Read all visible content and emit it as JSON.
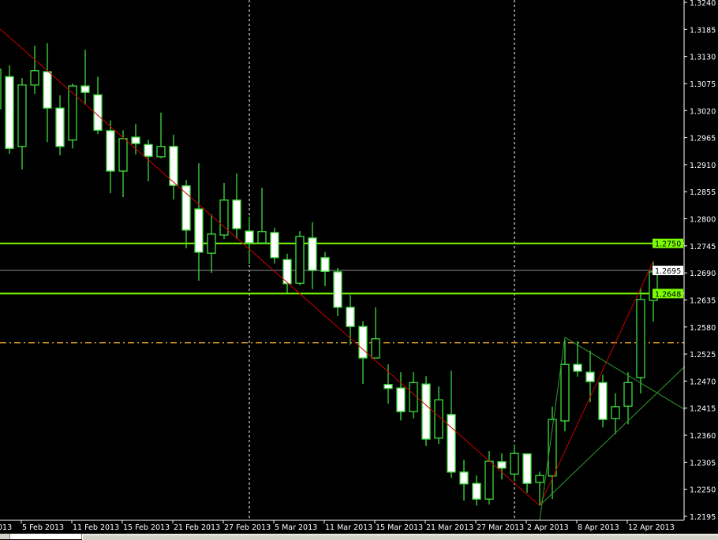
{
  "chart_data": {
    "type": "candlestick",
    "title": "",
    "ylim": [
      1.2195,
      1.324
    ],
    "y_ticks": [
      "1.3240",
      "1.3185",
      "1.3130",
      "1.3075",
      "1.3020",
      "1.2965",
      "1.2910",
      "1.2855",
      "1.2800",
      "1.2745",
      "1.2690",
      "1.2635",
      "1.2580",
      "1.2525",
      "1.2470",
      "1.2415",
      "1.2360",
      "1.2305",
      "1.2250",
      "1.2195"
    ],
    "x_ticks": [
      "013",
      "5 Feb 2013",
      "11 Feb 2013",
      "15 Feb 2013",
      "21 Feb 2013",
      "27 Feb 2013",
      "5 Mar 2013",
      "11 Mar 2013",
      "15 Mar 2013",
      "21 Mar 2013",
      "27 Mar 2013",
      "2 Apr 2013",
      "8 Apr 2013",
      "12 Apr 2013"
    ],
    "candles": [
      [
        1.3024,
        1.3109,
        1.294,
        1.3104
      ],
      [
        1.3089,
        1.3112,
        1.2932,
        1.2943
      ],
      [
        1.2947,
        1.3086,
        1.29,
        1.3072
      ],
      [
        1.3072,
        1.3152,
        1.3054,
        1.3101
      ],
      [
        1.3099,
        1.3157,
        1.2956,
        1.3025
      ],
      [
        1.3025,
        1.3051,
        1.2929,
        1.2947
      ],
      [
        1.296,
        1.3075,
        1.2943,
        1.307
      ],
      [
        1.307,
        1.3144,
        1.3032,
        1.3057
      ],
      [
        1.3052,
        1.3089,
        1.2972,
        1.298
      ],
      [
        1.2979,
        1.3,
        1.2852,
        1.2897
      ],
      [
        1.2897,
        1.298,
        1.2844,
        1.2963
      ],
      [
        1.2966,
        1.2993,
        1.2931,
        1.2953
      ],
      [
        1.2951,
        1.2961,
        1.2876,
        1.2927
      ],
      [
        1.2926,
        1.3016,
        1.2923,
        1.2947
      ],
      [
        1.2947,
        1.2971,
        1.2839,
        1.2868
      ],
      [
        1.2867,
        1.2879,
        1.274,
        1.2777
      ],
      [
        1.282,
        1.2913,
        1.2674,
        1.2732
      ],
      [
        1.273,
        1.2809,
        1.269,
        1.2769
      ],
      [
        1.2767,
        1.2873,
        1.2759,
        1.2838
      ],
      [
        1.2838,
        1.2892,
        1.2759,
        1.278
      ],
      [
        1.2775,
        1.2804,
        1.2708,
        1.2751
      ],
      [
        1.2751,
        1.2863,
        1.2748,
        1.2774
      ],
      [
        1.2772,
        1.2782,
        1.2709,
        1.2721
      ],
      [
        1.2717,
        1.2729,
        1.2649,
        1.2668
      ],
      [
        1.2669,
        1.2775,
        1.2665,
        1.2764
      ],
      [
        1.2761,
        1.2793,
        1.2657,
        1.2695
      ],
      [
        1.2721,
        1.2732,
        1.2663,
        1.2693
      ],
      [
        1.2692,
        1.27,
        1.2602,
        1.262
      ],
      [
        1.262,
        1.2645,
        1.2544,
        1.2581
      ],
      [
        1.2581,
        1.2592,
        1.2464,
        1.2517
      ],
      [
        1.2517,
        1.262,
        1.2517,
        1.2556
      ],
      [
        1.2463,
        1.2504,
        1.2424,
        1.2455
      ],
      [
        1.2456,
        1.2488,
        1.239,
        1.2408
      ],
      [
        1.2408,
        1.2488,
        1.2394,
        1.2467
      ],
      [
        1.2464,
        1.248,
        1.2338,
        1.2352
      ],
      [
        1.2354,
        1.2459,
        1.2342,
        1.2432
      ],
      [
        1.2402,
        1.2491,
        1.2273,
        1.2285
      ],
      [
        1.2285,
        1.231,
        1.2227,
        1.2261
      ],
      [
        1.2262,
        1.2278,
        1.2217,
        1.223
      ],
      [
        1.223,
        1.2328,
        1.2219,
        1.2307
      ],
      [
        1.2306,
        1.2323,
        1.227,
        1.2293
      ],
      [
        1.2281,
        1.2341,
        1.2267,
        1.2323
      ],
      [
        1.2322,
        1.2323,
        1.2243,
        1.2262
      ],
      [
        1.2264,
        1.2286,
        1.2217,
        1.2278
      ],
      [
        1.2277,
        1.2418,
        1.223,
        1.2392
      ],
      [
        1.2389,
        1.2554,
        1.2368,
        1.2504
      ],
      [
        1.2504,
        1.2551,
        1.2479,
        1.249
      ],
      [
        1.2488,
        1.2532,
        1.2427,
        1.2469
      ],
      [
        1.2467,
        1.2483,
        1.2376,
        1.2392
      ],
      [
        1.2394,
        1.2445,
        1.2362,
        1.2418
      ],
      [
        1.2419,
        1.2488,
        1.2382,
        1.2467
      ],
      [
        1.2477,
        1.266,
        1.2445,
        1.2636
      ],
      [
        1.2634,
        1.2713,
        1.2591,
        1.2692
      ]
    ],
    "candle_fields": [
      "open",
      "high",
      "low",
      "close"
    ],
    "current_price": "1.2695",
    "horizontal_levels": [
      {
        "price": 1.275,
        "label": "1.2750",
        "color": "#7cfc00"
      },
      {
        "price": 1.2648,
        "label": "1.2648",
        "color": "#7cfc00"
      }
    ],
    "dashed_level": {
      "price": 1.2548,
      "color": "#c8902a"
    },
    "trendlines": [
      {
        "color": "#cc0000",
        "points": [
          [
            -0.75,
            1.3186
          ],
          [
            42,
            1.2217
          ],
          [
            51,
            1.2714
          ]
        ]
      },
      {
        "color": "#2e9e2e",
        "points": [
          [
            42,
            1.2187
          ],
          [
            44,
            1.2559
          ],
          [
            53.5,
            1.2412
          ]
        ]
      },
      {
        "color": "#2e9e2e",
        "points": [
          [
            42,
            1.2217
          ],
          [
            53.5,
            1.25
          ]
        ]
      }
    ],
    "period_separators_at_candle": [
      19,
      40
    ],
    "colors": {
      "background": "#000000",
      "bull_outline": "#3ddc3d",
      "bear_fill": "#ffffff",
      "axis_text": "#ffffff",
      "current_price_line": "#8c8c9c"
    }
  }
}
